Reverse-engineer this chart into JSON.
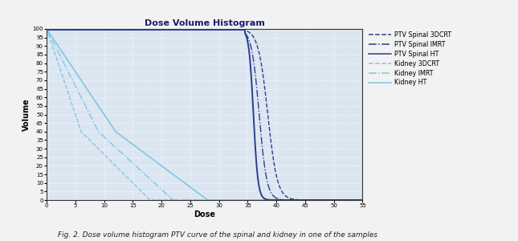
{
  "title": "Dose Volume Histogram",
  "xlabel": "Dose",
  "ylabel": "Volume",
  "xlim": [
    0,
    55
  ],
  "ylim": [
    0,
    100
  ],
  "xticks": [
    0,
    5,
    10,
    15,
    20,
    25,
    30,
    35,
    40,
    45,
    50,
    55
  ],
  "yticks": [
    0,
    5,
    10,
    15,
    20,
    25,
    30,
    35,
    40,
    45,
    50,
    55,
    60,
    65,
    70,
    75,
    80,
    85,
    90,
    95,
    100
  ],
  "plot_bg_color": "#dce6f1",
  "fig_bg_color": "#f2f2f2",
  "grid_color": "#ffffff",
  "ptv_color": "#2b3f8c",
  "kidney_color": "#7ec8e3",
  "caption": "Fig. 2. Dose volume histogram PTV curve of the spinal and kidney in one of the samples",
  "legend_items": [
    {
      "label": "PTV Spinal 3DCRT",
      "color": "#2b3f8c",
      "linestyle": "--"
    },
    {
      "label": "PTV Spinal IMRT",
      "color": "#2b3f8c",
      "linestyle": "-."
    },
    {
      "label": "PTV Spinal HT",
      "color": "#2b3f8c",
      "linestyle": "-"
    },
    {
      "label": "Kidney 3DCRT",
      "color": "#7ec8e3",
      "linestyle": "--"
    },
    {
      "label": "Kidney IMRT",
      "color": "#7ec8e3",
      "linestyle": "-."
    },
    {
      "label": "Kidney HT",
      "color": "#7ec8e3",
      "linestyle": "-"
    }
  ],
  "ptv_3dcrt": {
    "flat_to": 34.5,
    "x50": 38.5,
    "k": 1.2
  },
  "ptv_imrt": {
    "flat_to": 34.5,
    "x50": 37.0,
    "k": 1.5
  },
  "ptv_ht": {
    "flat_to": 34.5,
    "x50": 36.0,
    "k": 2.5
  },
  "kidney_3dcrt": {
    "x_start": 0.5,
    "x_knee": 6,
    "x_end": 18,
    "peak": 100
  },
  "kidney_imrt": {
    "x_start": 0.5,
    "x_knee": 9,
    "x_end": 22,
    "peak": 100
  },
  "kidney_ht": {
    "x_start": 0.5,
    "x_knee": 12,
    "x_end": 28,
    "peak": 100
  }
}
